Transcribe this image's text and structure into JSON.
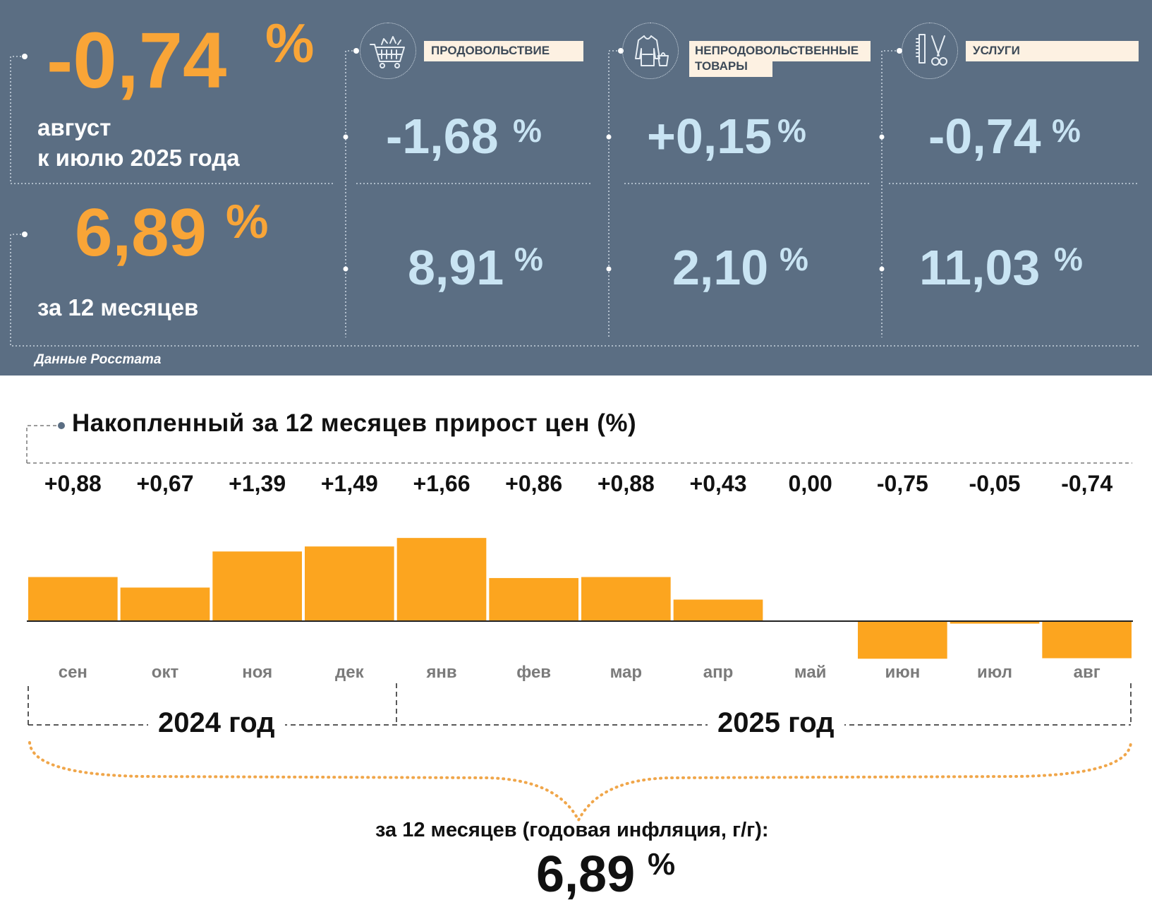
{
  "summary": {
    "monthly": {
      "value": "-0,74",
      "unit": "%",
      "line1": "август",
      "line2": "к июлю 2025 года"
    },
    "annual": {
      "value": "6,89",
      "unit": "%",
      "label": "за 12 месяцев"
    }
  },
  "categories": [
    {
      "name": "ПРОДОВОЛЬСТВИЕ",
      "icon": "shopping-cart-icon",
      "monthly": "-1,68",
      "annual": "8,91",
      "unit": "%"
    },
    {
      "name_line1": "НЕПРОДОВОЛЬСТВЕННЫЕ",
      "name_line2": "ТОВАРЫ",
      "icon": "clothing-icon",
      "monthly": "+0,15",
      "annual": "2,10",
      "unit": "%"
    },
    {
      "name": "УСЛУГИ",
      "icon": "scissors-comb-icon",
      "monthly": "-0,74",
      "annual": "11,03",
      "unit": "%"
    }
  ],
  "source": "Данные Росстата",
  "chart_data": {
    "type": "bar",
    "title": "Накопленный за 12 месяцев прирост цен (%)",
    "categories": [
      "сен",
      "окт",
      "ноя",
      "дек",
      "янв",
      "фев",
      "мар",
      "апр",
      "май",
      "июн",
      "июл",
      "авг"
    ],
    "values": [
      0.88,
      0.67,
      1.39,
      1.49,
      1.66,
      0.86,
      0.88,
      0.43,
      0.0,
      -0.75,
      -0.05,
      -0.74
    ],
    "value_labels": [
      "+0,88",
      "+0,67",
      "+1,39",
      "+1,49",
      "+1,66",
      "+0,86",
      "+0,88",
      "+0,43",
      "0,00",
      "-0,75",
      "-0,05",
      "-0,74"
    ],
    "year_groups": [
      {
        "label": "2024 год",
        "months": [
          "сен",
          "окт",
          "ноя",
          "дек"
        ]
      },
      {
        "label": "2025 год",
        "months": [
          "янв",
          "фев",
          "мар",
          "апр",
          "май",
          "июн",
          "июл",
          "авг"
        ]
      }
    ],
    "bar_color": "#fca51f",
    "ylim": [
      -0.75,
      1.66
    ]
  },
  "annual_summary": {
    "label": "за 12 месяцев (годовая инфляция, г/г):",
    "value": "6,89",
    "unit": "%"
  }
}
